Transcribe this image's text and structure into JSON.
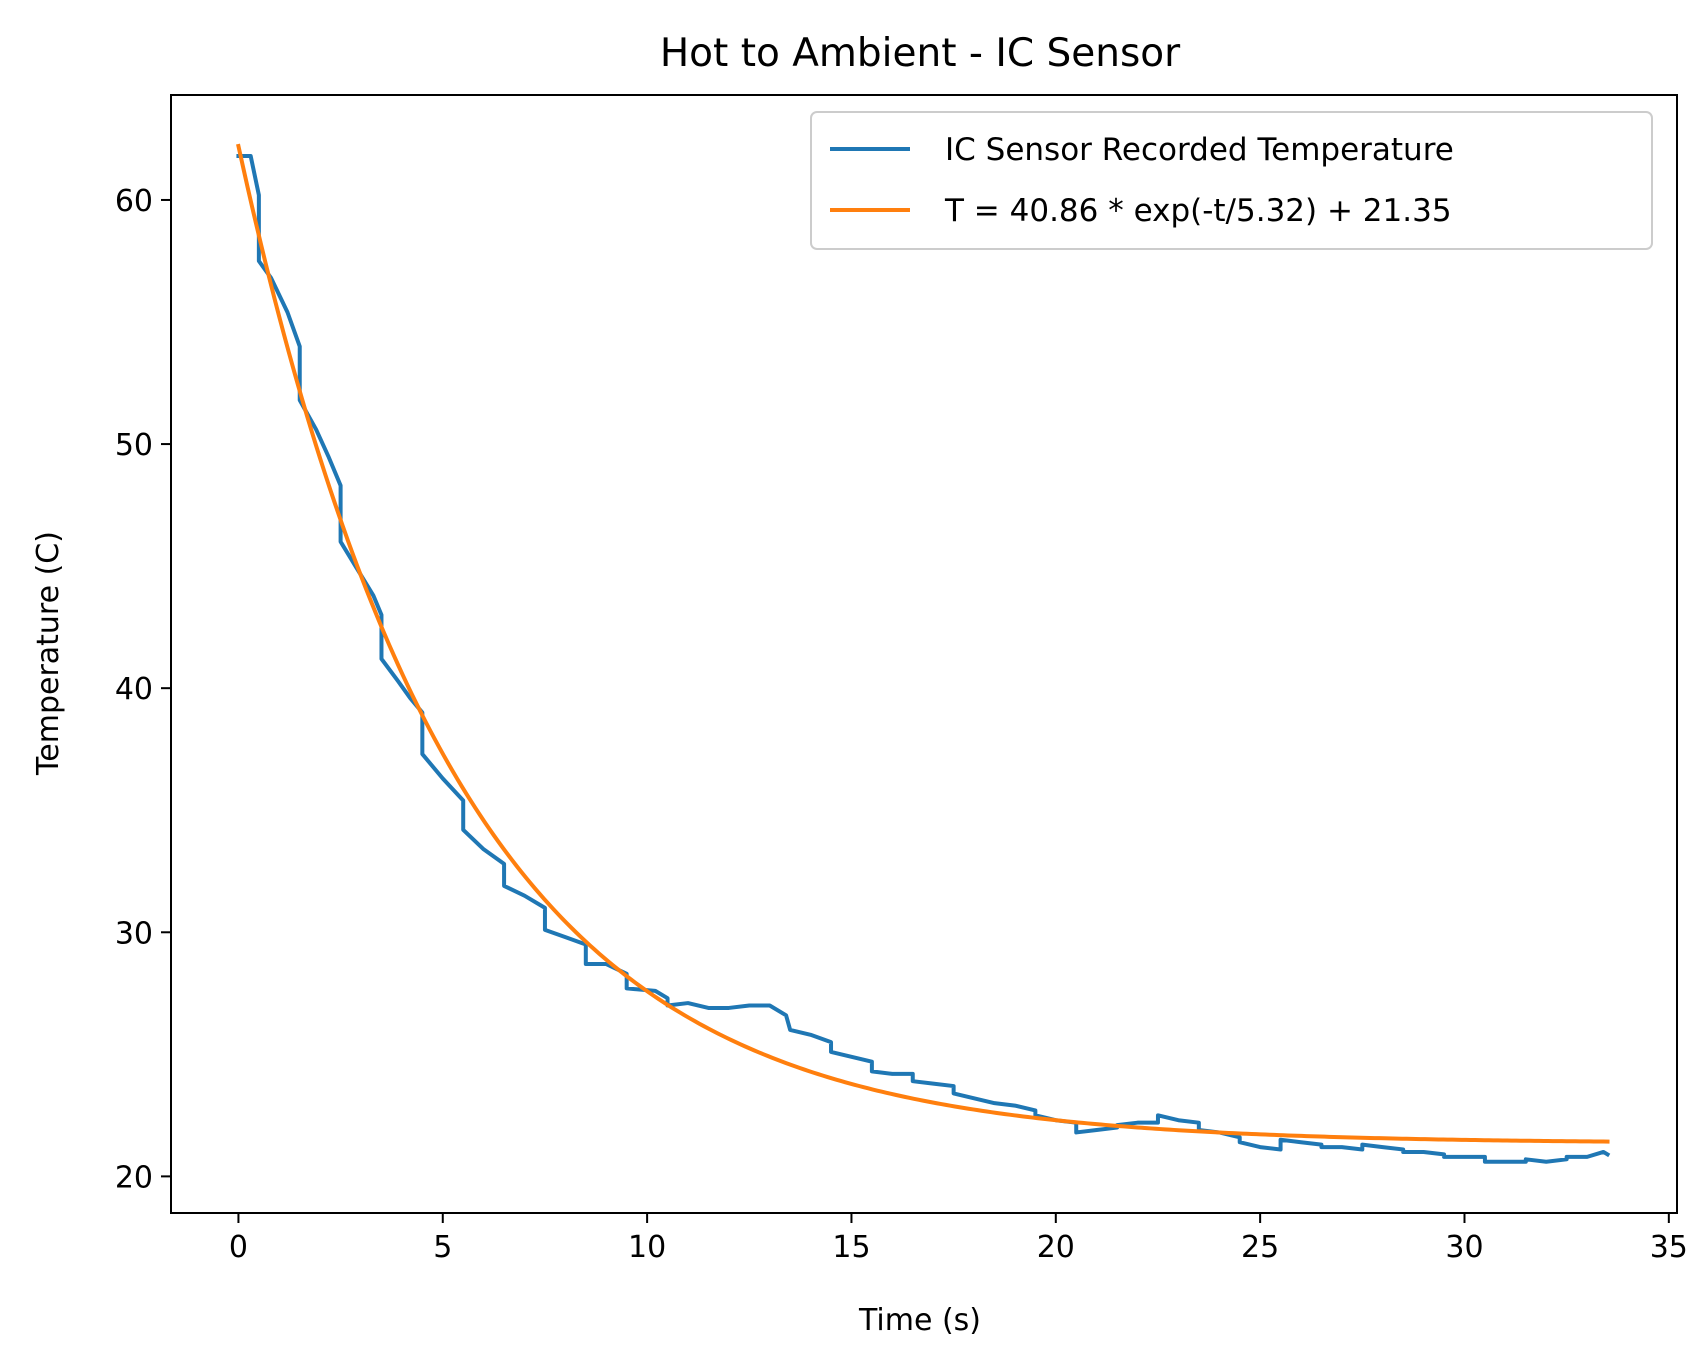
{
  "chart_data": {
    "type": "line",
    "title": "Hot to Ambient - IC Sensor",
    "xlabel": "Time (s)",
    "ylabel": "Temperature (C)",
    "xlim": [
      -1.65,
      35.2
    ],
    "ylim": [
      18.5,
      64.3
    ],
    "xticks": [
      0,
      5,
      10,
      15,
      20,
      25,
      30,
      35
    ],
    "yticks": [
      20,
      30,
      40,
      50,
      60
    ],
    "grid": false,
    "legend_position": "top-right",
    "series": [
      {
        "name": "IC Sensor Recorded Temperature",
        "color": "#1f77b4",
        "kind": "measured",
        "points": [
          [
            0.0,
            61.8
          ],
          [
            0.3,
            61.8
          ],
          [
            0.5,
            60.2
          ],
          [
            0.5,
            57.5
          ],
          [
            0.8,
            56.8
          ],
          [
            1.2,
            55.4
          ],
          [
            1.5,
            54.0
          ],
          [
            1.5,
            51.8
          ],
          [
            1.9,
            50.6
          ],
          [
            2.2,
            49.5
          ],
          [
            2.5,
            48.3
          ],
          [
            2.5,
            46.0
          ],
          [
            2.9,
            44.9
          ],
          [
            3.3,
            43.8
          ],
          [
            3.5,
            43.0
          ],
          [
            3.5,
            41.2
          ],
          [
            3.9,
            40.3
          ],
          [
            4.2,
            39.6
          ],
          [
            4.5,
            39.0
          ],
          [
            4.5,
            37.3
          ],
          [
            5.0,
            36.3
          ],
          [
            5.5,
            35.4
          ],
          [
            5.5,
            34.2
          ],
          [
            6.0,
            33.4
          ],
          [
            6.5,
            32.8
          ],
          [
            6.5,
            31.9
          ],
          [
            7.0,
            31.5
          ],
          [
            7.5,
            31.0
          ],
          [
            7.5,
            30.1
          ],
          [
            8.0,
            29.8
          ],
          [
            8.5,
            29.5
          ],
          [
            8.5,
            28.7
          ],
          [
            9.0,
            28.7
          ],
          [
            9.5,
            28.3
          ],
          [
            9.5,
            27.7
          ],
          [
            10.2,
            27.6
          ],
          [
            10.5,
            27.3
          ],
          [
            10.5,
            27.0
          ],
          [
            11.0,
            27.1
          ],
          [
            11.5,
            26.9
          ],
          [
            12.0,
            26.9
          ],
          [
            12.5,
            27.0
          ],
          [
            13.0,
            27.0
          ],
          [
            13.4,
            26.6
          ],
          [
            13.5,
            26.0
          ],
          [
            14.0,
            25.8
          ],
          [
            14.5,
            25.5
          ],
          [
            14.5,
            25.1
          ],
          [
            15.0,
            24.9
          ],
          [
            15.5,
            24.7
          ],
          [
            15.5,
            24.3
          ],
          [
            16.0,
            24.2
          ],
          [
            16.5,
            24.2
          ],
          [
            16.5,
            23.9
          ],
          [
            17.0,
            23.8
          ],
          [
            17.5,
            23.7
          ],
          [
            17.5,
            23.4
          ],
          [
            18.0,
            23.2
          ],
          [
            18.5,
            23.0
          ],
          [
            19.0,
            22.9
          ],
          [
            19.5,
            22.7
          ],
          [
            19.5,
            22.5
          ],
          [
            20.0,
            22.3
          ],
          [
            20.5,
            22.2
          ],
          [
            20.5,
            21.8
          ],
          [
            21.0,
            21.9
          ],
          [
            21.5,
            22.0
          ],
          [
            21.5,
            22.1
          ],
          [
            22.0,
            22.2
          ],
          [
            22.5,
            22.2
          ],
          [
            22.5,
            22.5
          ],
          [
            23.0,
            22.3
          ],
          [
            23.5,
            22.2
          ],
          [
            23.5,
            21.9
          ],
          [
            24.0,
            21.8
          ],
          [
            24.5,
            21.6
          ],
          [
            24.5,
            21.4
          ],
          [
            25.0,
            21.2
          ],
          [
            25.5,
            21.1
          ],
          [
            25.5,
            21.5
          ],
          [
            26.0,
            21.4
          ],
          [
            26.5,
            21.3
          ],
          [
            26.5,
            21.2
          ],
          [
            27.0,
            21.2
          ],
          [
            27.5,
            21.1
          ],
          [
            27.5,
            21.3
          ],
          [
            28.0,
            21.2
          ],
          [
            28.5,
            21.1
          ],
          [
            28.5,
            21.0
          ],
          [
            29.0,
            21.0
          ],
          [
            29.5,
            20.9
          ],
          [
            29.5,
            20.8
          ],
          [
            30.0,
            20.8
          ],
          [
            30.5,
            20.8
          ],
          [
            30.5,
            20.6
          ],
          [
            31.0,
            20.6
          ],
          [
            31.5,
            20.6
          ],
          [
            31.5,
            20.7
          ],
          [
            32.0,
            20.6
          ],
          [
            32.5,
            20.7
          ],
          [
            32.5,
            20.8
          ],
          [
            33.0,
            20.8
          ],
          [
            33.4,
            21.0
          ],
          [
            33.5,
            20.9
          ]
        ]
      },
      {
        "name": "T = 40.86 * exp(-t/5.32) + 21.35",
        "color": "#ff7f0e",
        "kind": "fit",
        "amplitude": 40.86,
        "tau": 5.32,
        "offset": 21.35,
        "x_range": [
          0,
          33.5
        ]
      }
    ]
  }
}
